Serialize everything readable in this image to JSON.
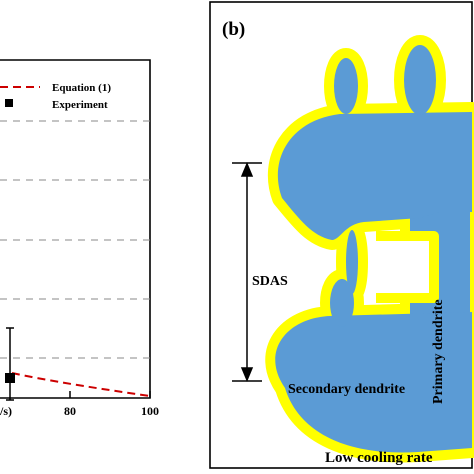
{
  "left_panel": {
    "legend": {
      "equation_label": "Equation (1)",
      "experiment_label": "Experiment"
    },
    "x_tick_labels": [
      "80",
      "100"
    ],
    "x_axis_label_fragment": "/s)"
  },
  "right_panel": {
    "panel_label": "(b)",
    "sdas_label": "SDAS",
    "secondary_dendrite_label": "Secondary dendrite",
    "primary_dendrite_label": "Primary dendrite",
    "caption": "Low cooling rate"
  },
  "colors": {
    "dendrite_fill": "#5b9bd5",
    "dendrite_rim": "#ffff00",
    "equation_line": "#cc0000",
    "gridline": "#888888"
  }
}
